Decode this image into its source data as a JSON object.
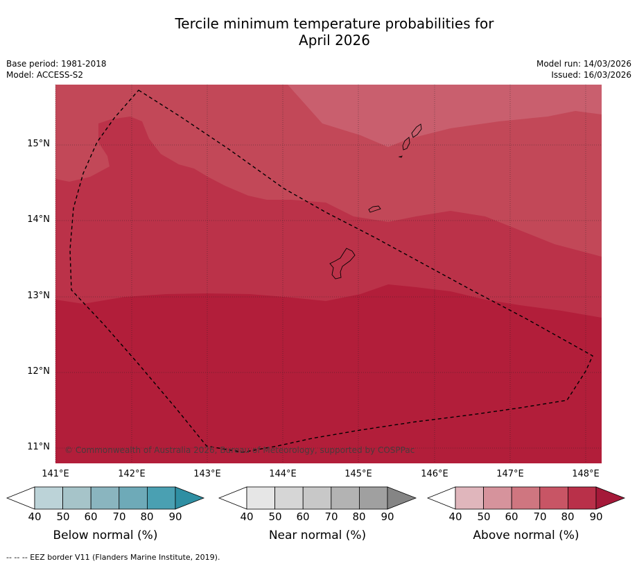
{
  "title": {
    "line1": "Tercile minimum temperature probabilities for",
    "line2": "April 2026"
  },
  "meta": {
    "base_period": "Base period: 1981-2018",
    "model": "Model: ACCESS-S2",
    "model_run": "Model run: 14/03/2026",
    "issued": "Issued: 16/03/2026"
  },
  "map": {
    "lat_labels": [
      "15°N",
      "14°N",
      "13°N",
      "12°N",
      "11°N"
    ],
    "lon_labels": [
      "141°E",
      "142°E",
      "143°E",
      "144°E",
      "145°E",
      "146°E",
      "147°E",
      "148°E"
    ],
    "credit": "© Commonwealth of Australia 2026, Bureau of Meteorology, supported by COSPPac",
    "region_colors": {
      "above_70_80": "#c95f6e",
      "above_80_90_light": "#c24858",
      "above_80_90": "#bb3249",
      "above_90": "#b21e3a"
    },
    "boundary_color": "#000000"
  },
  "colorbars": [
    {
      "title": "Below normal (%)",
      "ticks": [
        "40",
        "50",
        "60",
        "70",
        "80",
        "90"
      ],
      "colors": [
        "#bcd3d8",
        "#a6c4c9",
        "#8ab5bf",
        "#6eaab8",
        "#4aa0b2",
        "#2f8fa3"
      ]
    },
    {
      "title": "Near normal (%)",
      "ticks": [
        "40",
        "50",
        "60",
        "70",
        "80",
        "90"
      ],
      "colors": [
        "#e6e6e6",
        "#d6d6d6",
        "#c8c8c8",
        "#b3b3b3",
        "#a0a0a0",
        "#858585"
      ]
    },
    {
      "title": "Above normal (%)",
      "ticks": [
        "40",
        "50",
        "60",
        "70",
        "80",
        "90"
      ],
      "colors": [
        "#e0b6bc",
        "#d6939c",
        "#cf7680",
        "#c85565",
        "#b93049",
        "#a51939"
      ]
    }
  ],
  "footnote": "--  --  -- EEZ border V11 (Flanders Marine Institute, 2019)."
}
